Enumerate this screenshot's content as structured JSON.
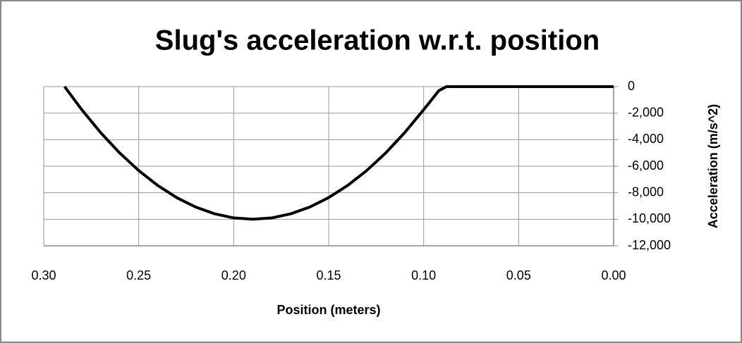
{
  "chart_data": {
    "type": "line",
    "title": "Slug's acceleration w.r.t. position",
    "x_label": "Position (meters)",
    "y_label": "Acceleration (m/s^2)",
    "x": [
      0.289,
      0.28,
      0.27,
      0.26,
      0.25,
      0.24,
      0.23,
      0.22,
      0.21,
      0.2,
      0.19,
      0.18,
      0.17,
      0.16,
      0.15,
      0.14,
      0.13,
      0.12,
      0.11,
      0.1,
      0.092,
      0.088,
      0.05,
      0.0
    ],
    "series": [
      {
        "name": "Acceleration",
        "color": "#000000",
        "values": [
          0,
          -1736,
          -3470,
          -5001,
          -6327,
          -7449,
          -8368,
          -9082,
          -9592,
          -9898,
          -10000,
          -9898,
          -9592,
          -9082,
          -8368,
          -7449,
          -6327,
          -5001,
          -3470,
          -1736,
          -300,
          0,
          0,
          0
        ]
      }
    ],
    "xlim": [
      0.3,
      0
    ],
    "xticks": [
      {
        "value": 0.3,
        "label": "0.30"
      },
      0.25,
      {
        "value": 0.2,
        "label": "0.20"
      },
      0.15,
      {
        "value": 0.1,
        "label": "0.10"
      },
      0.05,
      {
        "value": 0,
        "label": "0.00"
      }
    ],
    "ylim": [
      -12000,
      0
    ],
    "yticks": [
      0,
      {
        "value": -2000,
        "label": "-2,000"
      },
      {
        "value": -4000,
        "label": "-4,000"
      },
      {
        "value": -6000,
        "label": "-6,000"
      },
      {
        "value": -8000,
        "label": "-8,000"
      },
      {
        "value": -10000,
        "label": "-10,000"
      },
      {
        "value": -12000,
        "label": "-12,000"
      }
    ],
    "y_axis_side": "right",
    "grid": true
  }
}
